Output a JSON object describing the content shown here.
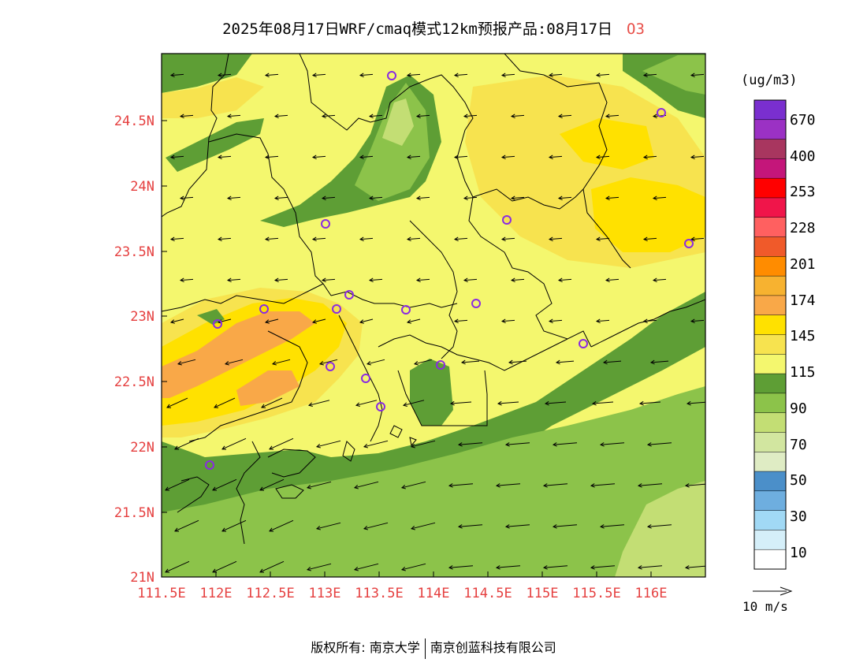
{
  "title": {
    "main": "2025年08月17日WRF/cmaq模式12km预报产品:08月17日",
    "species": "O3"
  },
  "axes": {
    "y_ticks": [
      "24.5N",
      "24N",
      "23.5N",
      "23N",
      "22.5N",
      "22N",
      "21.5N",
      "21N"
    ],
    "x_ticks": [
      "111.5E",
      "112E",
      "112.5E",
      "113E",
      "113.5E",
      "114E",
      "114.5E",
      "115E",
      "115.5E",
      "116E"
    ]
  },
  "legend": {
    "unit": "(ug/m3)",
    "labels": [
      "670",
      "400",
      "253",
      "228",
      "201",
      "174",
      "145",
      "115",
      "90",
      "70",
      "50",
      "30",
      "10"
    ],
    "colors": [
      "#7a2fcf",
      "#9b31c4",
      "#a8365f",
      "#c4167a",
      "#ff0000",
      "#f0154a",
      "#ff6060",
      "#f05a2a",
      "#ff8c00",
      "#f7b230",
      "#f9a848",
      "#ffe100",
      "#f7e34f",
      "#f4f76e",
      "#5e9e35",
      "#8cc34a",
      "#c3de74",
      "#d2e6a0",
      "#dfecc4",
      "#4b8fc9",
      "#6eaedf",
      "#a1d9f5",
      "#d5eff9",
      "#ffffff"
    ]
  },
  "vector_reference": "10 m/s",
  "stations": [
    "site",
    "site",
    "site",
    "site",
    "site",
    "site",
    "site",
    "site",
    "site",
    "site",
    "site",
    "site",
    "site",
    "site",
    "site",
    "site",
    "site",
    "site"
  ],
  "copyright": {
    "left": "版权所有: 南京大学",
    "right": "南京创蓝科技有限公司"
  }
}
